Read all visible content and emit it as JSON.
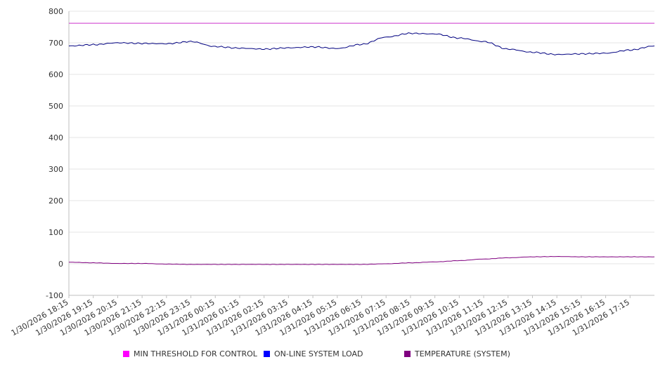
{
  "chart_data": {
    "type": "line",
    "ylim": [
      -100,
      800
    ],
    "yticks": [
      -100,
      0,
      100,
      200,
      300,
      400,
      500,
      600,
      700,
      800
    ],
    "grid": true,
    "legend_position": "bottom",
    "x_tick_labels": [
      "1/30/2026 18:15",
      "1/30/2026 19:15",
      "1/30/2026 20:15",
      "1/30/2026 21:15",
      "1/30/2026 22:15",
      "1/30/2026 23:15",
      "1/31/2026 00:15",
      "1/31/2026 01:15",
      "1/31/2026 02:15",
      "1/31/2026 03:15",
      "1/31/2026 04:15",
      "1/31/2026 05:15",
      "1/31/2026 06:15",
      "1/31/2026 07:15",
      "1/31/2026 08:15",
      "1/31/2026 09:15",
      "1/31/2026 10:15",
      "1/31/2026 11:15",
      "1/31/2026 12:15",
      "1/31/2026 13:15",
      "1/31/2026 14:15",
      "1/31/2026 15:15",
      "1/31/2026 16:15",
      "1/31/2026 17:15"
    ],
    "x": [
      "1/30/2026 18:15",
      "1/30/2026 19:15",
      "1/30/2026 20:15",
      "1/30/2026 21:15",
      "1/30/2026 22:15",
      "1/30/2026 23:15",
      "1/31/2026 00:15",
      "1/31/2026 01:15",
      "1/31/2026 02:15",
      "1/31/2026 03:15",
      "1/31/2026 04:15",
      "1/31/2026 05:15",
      "1/31/2026 06:15",
      "1/31/2026 07:15",
      "1/31/2026 08:15",
      "1/31/2026 09:15",
      "1/31/2026 10:15",
      "1/31/2026 11:15",
      "1/31/2026 12:15",
      "1/31/2026 13:15",
      "1/31/2026 14:15",
      "1/31/2026 15:15",
      "1/31/2026 16:15",
      "1/31/2026 17:15",
      "1/31/2026 18:15"
    ],
    "series": [
      {
        "name": "MIN THRESHOLD FOR CONTROL",
        "color": "#cc33cc",
        "values": [
          762,
          762,
          762,
          762,
          762,
          762,
          762,
          762,
          762,
          762,
          762,
          762,
          762,
          762,
          762,
          762,
          762,
          762,
          762,
          762,
          762,
          762,
          762,
          762,
          762
        ]
      },
      {
        "name": "ON-LINE SYSTEM LOAD",
        "color": "#000080",
        "values": [
          690,
          694,
          700,
          698,
          697,
          704,
          688,
          683,
          680,
          684,
          687,
          682,
          695,
          718,
          730,
          728,
          715,
          704,
          680,
          670,
          663,
          665,
          667,
          677,
          690
        ]
      },
      {
        "name": "TEMPERATURE (SYSTEM)",
        "color": "#800080",
        "values": [
          5,
          3,
          1,
          1,
          -1,
          -2,
          -2,
          -2,
          -2,
          -2,
          -2,
          -2,
          -2,
          0,
          3,
          6,
          10,
          15,
          19,
          22,
          23,
          22,
          22,
          22,
          22
        ]
      }
    ]
  },
  "legend": {
    "items": [
      {
        "label": "MIN THRESHOLD FOR CONTROL",
        "color": "#ff00ff"
      },
      {
        "label": "ON-LINE SYSTEM LOAD",
        "color": "#0000ff"
      },
      {
        "label": "TEMPERATURE (SYSTEM)",
        "color": "#800080"
      }
    ]
  }
}
